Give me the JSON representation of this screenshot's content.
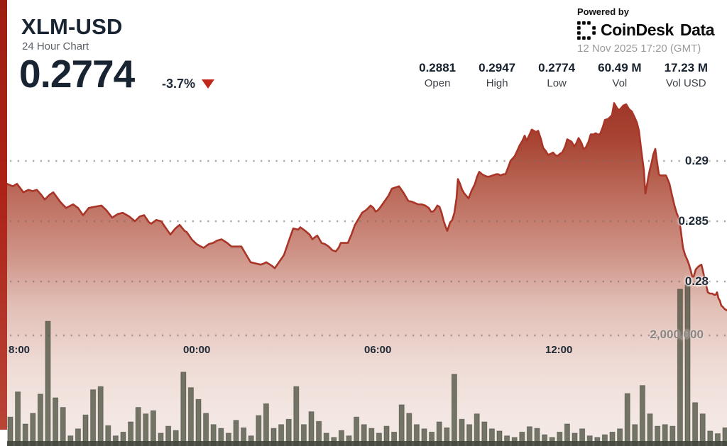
{
  "header": {
    "title": "XLM-USD",
    "subtitle": "24 Hour Chart",
    "price": "0.2774",
    "change": "-3.7%",
    "change_direction": "down"
  },
  "powered_by": {
    "label": "Powered by",
    "brand_primary": "CoinDesk",
    "brand_secondary": "Data",
    "timestamp": "12 Nov 2025 17:20 (GMT)"
  },
  "stats": [
    {
      "value": "0.2881",
      "label": "Open"
    },
    {
      "value": "0.2947",
      "label": "High"
    },
    {
      "value": "0.2774",
      "label": "Low"
    },
    {
      "value": "60.49 M",
      "label": "Vol"
    },
    {
      "value": "17.23 M",
      "label": "Vol USD"
    }
  ],
  "axes": {
    "price_labels": [
      "0.29",
      "0.285",
      "0.28"
    ],
    "volume_label": "2,000,000",
    "time_labels": [
      "8:00",
      "00:00",
      "06:00",
      "12:00"
    ]
  },
  "chart_data": {
    "type": "area",
    "title": "XLM-USD 24 Hour Chart",
    "open": 0.2881,
    "high": 0.2947,
    "low": 0.2774,
    "last": 0.2774,
    "change_pct": -3.7,
    "volume": "60.49 M",
    "volume_usd": "17.23 M",
    "y_gridline_prices": [
      0.29,
      0.285,
      0.28
    ],
    "volume_gridline_millions": 2.0,
    "x_tick_labels": [
      "8:00",
      "00:00",
      "06:00",
      "12:00"
    ],
    "grid": true,
    "legend": false,
    "price_series": [
      [
        10,
        0.2881
      ],
      [
        18,
        0.2879
      ],
      [
        24,
        0.2881
      ],
      [
        33,
        0.2874
      ],
      [
        40,
        0.2876
      ],
      [
        46,
        0.2875
      ],
      [
        52,
        0.2876
      ],
      [
        58,
        0.2872
      ],
      [
        63,
        0.2868
      ],
      [
        70,
        0.2872
      ],
      [
        75,
        0.2874
      ],
      [
        85,
        0.2866
      ],
      [
        93,
        0.2861
      ],
      [
        103,
        0.2864
      ],
      [
        110,
        0.2861
      ],
      [
        117,
        0.2855
      ],
      [
        125,
        0.2861
      ],
      [
        133,
        0.2862
      ],
      [
        143,
        0.2863
      ],
      [
        150,
        0.2859
      ],
      [
        158,
        0.2853
      ],
      [
        166,
        0.2856
      ],
      [
        173,
        0.2857
      ],
      [
        182,
        0.2854
      ],
      [
        190,
        0.285
      ],
      [
        197,
        0.2854
      ],
      [
        203,
        0.2855
      ],
      [
        210,
        0.2849
      ],
      [
        213,
        0.2848
      ],
      [
        220,
        0.2851
      ],
      [
        227,
        0.285
      ],
      [
        234,
        0.2844
      ],
      [
        240,
        0.2839
      ],
      [
        247,
        0.2844
      ],
      [
        253,
        0.2847
      ],
      [
        260,
        0.2842
      ],
      [
        263,
        0.2841
      ],
      [
        270,
        0.2835
      ],
      [
        277,
        0.2831
      ],
      [
        283,
        0.2829
      ],
      [
        287,
        0.2828
      ],
      [
        294,
        0.2831
      ],
      [
        300,
        0.2832
      ],
      [
        306,
        0.2834
      ],
      [
        312,
        0.2835
      ],
      [
        320,
        0.2832
      ],
      [
        326,
        0.2829
      ],
      [
        330,
        0.2829
      ],
      [
        340,
        0.2829
      ],
      [
        347,
        0.2822
      ],
      [
        353,
        0.2816
      ],
      [
        360,
        0.2815
      ],
      [
        367,
        0.2814
      ],
      [
        372,
        0.2815
      ],
      [
        375,
        0.2816
      ],
      [
        383,
        0.2813
      ],
      [
        387,
        0.2811
      ],
      [
        393,
        0.2816
      ],
      [
        400,
        0.2822
      ],
      [
        407,
        0.2834
      ],
      [
        413,
        0.2844
      ],
      [
        420,
        0.2843
      ],
      [
        423,
        0.2845
      ],
      [
        430,
        0.2842
      ],
      [
        436,
        0.2839
      ],
      [
        440,
        0.2835
      ],
      [
        444,
        0.2837
      ],
      [
        447,
        0.2838
      ],
      [
        453,
        0.2832
      ],
      [
        458,
        0.2831
      ],
      [
        463,
        0.2829
      ],
      [
        468,
        0.2826
      ],
      [
        473,
        0.2825
      ],
      [
        477,
        0.2828
      ],
      [
        480,
        0.2832
      ],
      [
        490,
        0.2832
      ],
      [
        495,
        0.2839
      ],
      [
        500,
        0.2847
      ],
      [
        505,
        0.2852
      ],
      [
        510,
        0.2857
      ],
      [
        515,
        0.2859
      ],
      [
        517,
        0.286
      ],
      [
        522,
        0.2863
      ],
      [
        526,
        0.2861
      ],
      [
        529,
        0.2858
      ],
      [
        532,
        0.2859
      ],
      [
        535,
        0.2861
      ],
      [
        541,
        0.2866
      ],
      [
        547,
        0.2871
      ],
      [
        552,
        0.2877
      ],
      [
        557,
        0.2878
      ],
      [
        562,
        0.2879
      ],
      [
        568,
        0.2874
      ],
      [
        575,
        0.2867
      ],
      [
        581,
        0.2866
      ],
      [
        589,
        0.2864
      ],
      [
        594,
        0.2864
      ],
      [
        599,
        0.2863
      ],
      [
        604,
        0.2861
      ],
      [
        607,
        0.2858
      ],
      [
        610,
        0.2858
      ],
      [
        613,
        0.286
      ],
      [
        616,
        0.2863
      ],
      [
        619,
        0.2862
      ],
      [
        622,
        0.2857
      ],
      [
        625,
        0.285
      ],
      [
        628,
        0.2845
      ],
      [
        630,
        0.2842
      ],
      [
        634,
        0.2849
      ],
      [
        637,
        0.2851
      ],
      [
        640,
        0.2857
      ],
      [
        643,
        0.2869
      ],
      [
        645,
        0.2885
      ],
      [
        648,
        0.2881
      ],
      [
        651,
        0.2876
      ],
      [
        654,
        0.2873
      ],
      [
        657,
        0.2871
      ],
      [
        660,
        0.2869
      ],
      [
        664,
        0.2875
      ],
      [
        669,
        0.2881
      ],
      [
        672,
        0.2887
      ],
      [
        675,
        0.2891
      ],
      [
        679,
        0.2889
      ],
      [
        682,
        0.2888
      ],
      [
        686,
        0.2887
      ],
      [
        689,
        0.2887
      ],
      [
        694,
        0.2888
      ],
      [
        699,
        0.2889
      ],
      [
        702,
        0.2889
      ],
      [
        705,
        0.2888
      ],
      [
        709,
        0.2889
      ],
      [
        712,
        0.2889
      ],
      [
        716,
        0.2895
      ],
      [
        719,
        0.29
      ],
      [
        722,
        0.2902
      ],
      [
        725,
        0.2904
      ],
      [
        729,
        0.2909
      ],
      [
        732,
        0.2913
      ],
      [
        736,
        0.2917
      ],
      [
        739,
        0.2921
      ],
      [
        741,
        0.2918
      ],
      [
        742,
        0.2917
      ],
      [
        746,
        0.2922
      ],
      [
        749,
        0.2926
      ],
      [
        752,
        0.2925
      ],
      [
        755,
        0.2924
      ],
      [
        758,
        0.2925
      ],
      [
        762,
        0.2918
      ],
      [
        765,
        0.2911
      ],
      [
        769,
        0.2908
      ],
      [
        772,
        0.2905
      ],
      [
        776,
        0.2906
      ],
      [
        779,
        0.2907
      ],
      [
        782,
        0.2905
      ],
      [
        785,
        0.2904
      ],
      [
        789,
        0.2906
      ],
      [
        792,
        0.2907
      ],
      [
        796,
        0.2912
      ],
      [
        799,
        0.2918
      ],
      [
        802,
        0.2917
      ],
      [
        805,
        0.2916
      ],
      [
        807,
        0.2914
      ],
      [
        809,
        0.2912
      ],
      [
        812,
        0.2915
      ],
      [
        815,
        0.2919
      ],
      [
        819,
        0.2915
      ],
      [
        822,
        0.291
      ],
      [
        825,
        0.2911
      ],
      [
        829,
        0.2916
      ],
      [
        832,
        0.2922
      ],
      [
        836,
        0.2922
      ],
      [
        839,
        0.2923
      ],
      [
        842,
        0.2922
      ],
      [
        845,
        0.2922
      ],
      [
        849,
        0.2928
      ],
      [
        852,
        0.2934
      ],
      [
        857,
        0.2935
      ],
      [
        862,
        0.2938
      ],
      [
        865,
        0.2948
      ],
      [
        869,
        0.2944
      ],
      [
        872,
        0.2942
      ],
      [
        875,
        0.2944
      ],
      [
        878,
        0.2946
      ],
      [
        882,
        0.2947
      ],
      [
        886,
        0.2943
      ],
      [
        890,
        0.2941
      ],
      [
        894,
        0.2936
      ],
      [
        897,
        0.2932
      ],
      [
        900,
        0.2925
      ],
      [
        903,
        0.291
      ],
      [
        905,
        0.2901
      ],
      [
        907,
        0.2892
      ],
      [
        908,
        0.2882
      ],
      [
        909,
        0.2873
      ],
      [
        911,
        0.2879
      ],
      [
        913,
        0.2886
      ],
      [
        915,
        0.2892
      ],
      [
        918,
        0.2899
      ],
      [
        920,
        0.2905
      ],
      [
        923,
        0.291
      ],
      [
        925,
        0.2901
      ],
      [
        928,
        0.2889
      ],
      [
        930,
        0.2888
      ],
      [
        933,
        0.2888
      ],
      [
        936,
        0.2888
      ],
      [
        938,
        0.2888
      ],
      [
        941,
        0.2884
      ],
      [
        943,
        0.2881
      ],
      [
        946,
        0.2873
      ],
      [
        950,
        0.2863
      ],
      [
        953,
        0.2857
      ],
      [
        955,
        0.2854
      ],
      [
        957,
        0.285
      ],
      [
        959,
        0.2842
      ],
      [
        962,
        0.2828
      ],
      [
        965,
        0.2822
      ],
      [
        968,
        0.2818
      ],
      [
        970,
        0.2815
      ],
      [
        973,
        0.2809
      ],
      [
        975,
        0.2804
      ],
      [
        977,
        0.2804
      ],
      [
        980,
        0.281
      ],
      [
        983,
        0.2812
      ],
      [
        985,
        0.2813
      ],
      [
        988,
        0.2814
      ],
      [
        990,
        0.2809
      ],
      [
        993,
        0.2801
      ],
      [
        995,
        0.2796
      ],
      [
        997,
        0.2791
      ],
      [
        1000,
        0.279
      ],
      [
        1003,
        0.279
      ],
      [
        1006,
        0.2789
      ],
      [
        1008,
        0.2789
      ],
      [
        1010,
        0.2791
      ],
      [
        1012,
        0.2786
      ],
      [
        1014,
        0.2784
      ],
      [
        1016,
        0.278
      ],
      [
        1018,
        0.2779
      ],
      [
        1021,
        0.2777
      ],
      [
        1024,
        0.2776
      ]
    ],
    "volume_series_millions": [
      0.54,
      1.01,
      0.41,
      0.61,
      0.97,
      2.33,
      0.9,
      0.72,
      0.19,
      0.32,
      0.58,
      1.05,
      1.11,
      0.38,
      0.19,
      0.26,
      0.45,
      0.72,
      0.6,
      0.66,
      0.24,
      0.37,
      0.29,
      1.38,
      1.09,
      0.87,
      0.61,
      0.4,
      0.33,
      0.24,
      0.48,
      0.34,
      0.19,
      0.57,
      0.79,
      0.33,
      0.4,
      0.5,
      1.11,
      0.4,
      0.64,
      0.46,
      0.24,
      0.16,
      0.29,
      0.19,
      0.54,
      0.4,
      0.33,
      0.24,
      0.37,
      0.26,
      0.77,
      0.61,
      0.4,
      0.32,
      0.26,
      0.45,
      0.34,
      1.34,
      0.5,
      0.4,
      0.6,
      0.45,
      0.32,
      0.28,
      0.19,
      0.16,
      0.26,
      0.36,
      0.33,
      0.21,
      0.16,
      0.26,
      0.41,
      0.24,
      0.32,
      0.19,
      0.16,
      0.21,
      0.26,
      0.32,
      0.98,
      0.4,
      1.13,
      0.6,
      0.37,
      0.4,
      0.37,
      2.93,
      3.01,
      0.81,
      0.6,
      0.28,
      0.23,
      0.34
    ],
    "colors": {
      "line": "#a93528",
      "area_top": "#9d3526",
      "area_bottom": "#f5ebe8",
      "volume_bar": "rgba(78,83,66,0.78)",
      "accent_red": "#c0281c",
      "grid_dot": "rgba(118,108,105,0.6)"
    }
  }
}
